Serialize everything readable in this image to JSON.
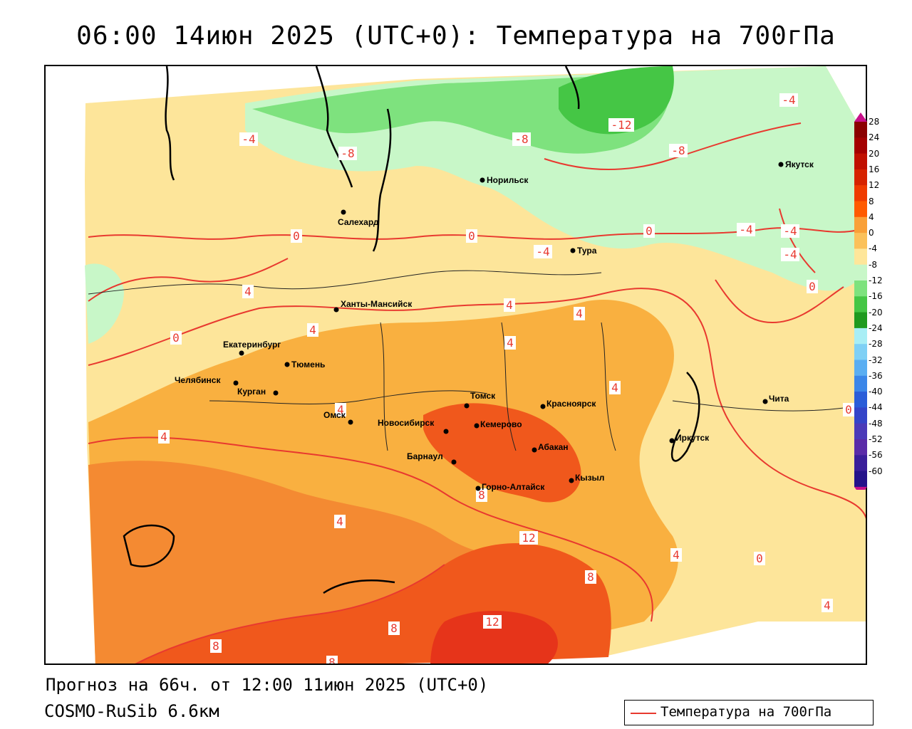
{
  "title": "06:00 14июн 2025 (UTC+0): Температура на 700гПа",
  "footer": {
    "forecast": "Прогноз на 66ч. от 12:00 11июн 2025 (UTC+0)",
    "model": "COSMO-RuSib 6.6км"
  },
  "legend": {
    "label": "Температура на 700гПа",
    "line_color": "#e8392f"
  },
  "colorbar": {
    "ticks": [
      "28",
      "24",
      "20",
      "16",
      "12",
      "8",
      "4",
      "0",
      "-4",
      "-8",
      "-12",
      "-16",
      "-20",
      "-24",
      "-28",
      "-32",
      "-36",
      "-40",
      "-44",
      "-48",
      "-52",
      "-56",
      "-60"
    ],
    "colors": [
      "#8b0000",
      "#a40000",
      "#c01000",
      "#d62300",
      "#ef3b00",
      "#ff5a00",
      "#f9a038",
      "#fbc15a",
      "#fee69a",
      "#c8f7c8",
      "#7ee27e",
      "#45c645",
      "#1f9a1f",
      "#a8eef5",
      "#7fd0f5",
      "#5aaef2",
      "#3b86e8",
      "#2a5dd8",
      "#3444c8",
      "#4b3ab8",
      "#5a2ba8",
      "#3a1e9a",
      "#24128a"
    ],
    "top_color": "#c8108a",
    "bottom_color": "#c8108a"
  },
  "cities": [
    {
      "name": "Норильск"
    },
    {
      "name": "Якутск"
    },
    {
      "name": "Салехард"
    },
    {
      "name": "Тура"
    },
    {
      "name": "Ханты-Мансийск"
    },
    {
      "name": "Екатеринбург"
    },
    {
      "name": "Тюмень"
    },
    {
      "name": "Челябинск"
    },
    {
      "name": "Курган"
    },
    {
      "name": "Омск"
    },
    {
      "name": "Томск"
    },
    {
      "name": "Красноярск"
    },
    {
      "name": "Новосибирск"
    },
    {
      "name": "Кемерово"
    },
    {
      "name": "Абакан"
    },
    {
      "name": "Барнаул"
    },
    {
      "name": "Горно-Алтайск"
    },
    {
      "name": "Кызыл"
    },
    {
      "name": "Иркутск"
    },
    {
      "name": "Чита"
    }
  ],
  "isotherm_labels": [
    "-4",
    "-8",
    "-8",
    "-12",
    "-8",
    "-4",
    "-4",
    "-4",
    "-4",
    "-4",
    "0",
    "0",
    "0",
    "0",
    "0",
    "0",
    "0",
    "4",
    "4",
    "4",
    "4",
    "4",
    "4",
    "4",
    "4",
    "4",
    "4",
    "4",
    "8",
    "8",
    "8",
    "8",
    "8",
    "12",
    "12"
  ]
}
